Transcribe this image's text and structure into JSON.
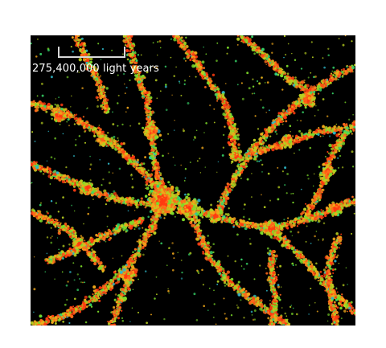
{
  "image": {
    "subject": "cosmic-web-galaxy-distribution",
    "background_color": "#000000",
    "point_colors": [
      "#ff3b10",
      "#ff6a1a",
      "#f2a81a",
      "#b8d020",
      "#7ddc2a",
      "#38d86a",
      "#2fb8c8"
    ]
  },
  "scale_bar": {
    "label": "275,400,000 light years"
  }
}
